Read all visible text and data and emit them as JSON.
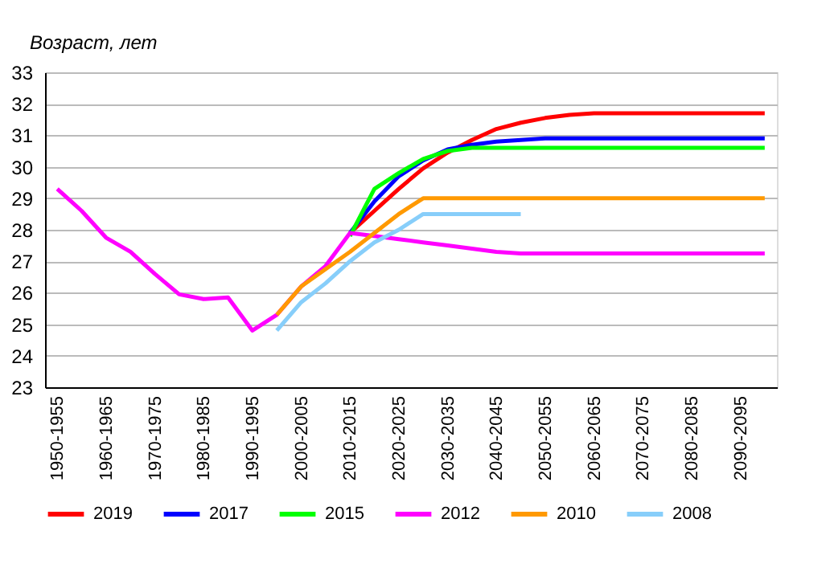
{
  "chart_data": {
    "type": "line",
    "ylabel": "Возраст, лет",
    "categories": [
      "1950-1955",
      null,
      "1960-1965",
      null,
      "1970-1975",
      null,
      "1980-1985",
      null,
      "1990-1995",
      null,
      "2000-2005",
      null,
      "2010-2015",
      null,
      "2020-2025",
      null,
      "2030-2035",
      null,
      "2040-2045",
      null,
      "2050-2055",
      null,
      "2060-2065",
      null,
      "2070-2075",
      null,
      "2080-2085",
      null,
      "2090-2095",
      null
    ],
    "series": [
      {
        "name": "2019",
        "color": "#ff0000",
        "values": [
          null,
          null,
          null,
          null,
          null,
          null,
          null,
          null,
          null,
          null,
          null,
          null,
          27.9,
          28.6,
          29.3,
          29.95,
          30.45,
          30.85,
          31.2,
          31.4,
          31.55,
          31.65,
          31.7,
          31.7,
          31.7,
          31.7,
          31.7,
          31.7,
          31.7,
          31.7
        ]
      },
      {
        "name": "2017",
        "color": "#0000ff",
        "values": [
          null,
          null,
          null,
          null,
          null,
          null,
          null,
          null,
          null,
          null,
          null,
          null,
          27.9,
          28.9,
          29.7,
          30.2,
          30.55,
          30.7,
          30.8,
          30.85,
          30.9,
          30.9,
          30.9,
          30.9,
          30.9,
          30.9,
          30.9,
          30.9,
          30.9,
          30.9
        ]
      },
      {
        "name": "2015",
        "color": "#00ff00",
        "values": [
          null,
          null,
          null,
          null,
          null,
          null,
          null,
          null,
          null,
          null,
          null,
          null,
          27.8,
          29.3,
          29.8,
          30.25,
          30.5,
          30.6,
          30.6,
          30.6,
          30.6,
          30.6,
          30.6,
          30.6,
          30.6,
          30.6,
          30.6,
          30.6,
          30.6,
          30.6
        ]
      },
      {
        "name": "2012",
        "color": "#ff00ff",
        "values": [
          29.3,
          28.6,
          27.75,
          27.3,
          26.6,
          25.95,
          25.8,
          25.85,
          24.8,
          25.3,
          26.2,
          26.85,
          27.9,
          27.8,
          27.7,
          27.6,
          27.5,
          27.4,
          27.3,
          27.25,
          27.25,
          27.25,
          27.25,
          27.25,
          27.25,
          27.25,
          27.25,
          27.25,
          27.25,
          27.25
        ]
      },
      {
        "name": "2010",
        "color": "#ff9900",
        "values": [
          null,
          null,
          null,
          null,
          null,
          null,
          null,
          null,
          null,
          25.3,
          26.2,
          26.75,
          27.3,
          27.9,
          28.5,
          29.0,
          29.0,
          29.0,
          29.0,
          29.0,
          29.0,
          29.0,
          29.0,
          29.0,
          29.0,
          29.0,
          29.0,
          29.0,
          29.0,
          29.0
        ]
      },
      {
        "name": "2008",
        "color": "#87cefa",
        "values": [
          null,
          null,
          null,
          null,
          null,
          null,
          null,
          null,
          null,
          24.8,
          25.7,
          26.3,
          27.0,
          27.6,
          28.0,
          28.5,
          28.5,
          28.5,
          28.5,
          28.5,
          null,
          null,
          null,
          null,
          null,
          null,
          null,
          null,
          null,
          null
        ]
      }
    ],
    "ylim": [
      23,
      33
    ],
    "yticks": [
      23,
      24,
      25,
      26,
      27,
      28,
      29,
      30,
      31,
      32,
      33
    ],
    "grid": "y",
    "legend": "bottom",
    "marker": "none",
    "line_style": "solid"
  }
}
